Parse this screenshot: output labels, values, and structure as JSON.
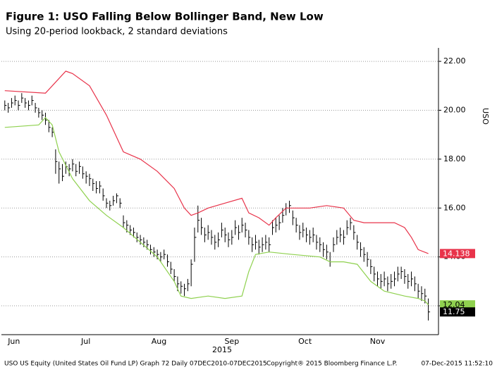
{
  "chart_data": {
    "type": "ohlc",
    "title": "Figure 1: USO Falling Below Bollinger Band, New Low",
    "subtitle": "Using 20-period  lookback, 2 standard deviations",
    "y_label": "USO",
    "x_label": "2015",
    "footer": [
      "USO US Equity (United States Oil Fund LP) Graph 72  Daily 07DEC2010-07DEC2015",
      "Copyright® 2015 Bloomberg Finance L.P.",
      "07-Dec-2015 11:52:10"
    ],
    "grid": true,
    "xlim": [
      -1,
      128
    ],
    "xticks": [
      {
        "value": 2.7,
        "label": "Jun"
      },
      {
        "value": 23.9,
        "label": "Jul"
      },
      {
        "value": 45.5,
        "label": "Aug"
      },
      {
        "value": 67,
        "label": "Sep"
      },
      {
        "value": 88.6,
        "label": "Oct"
      },
      {
        "value": 110,
        "label": "Nov"
      }
    ],
    "ylim": [
      10.82,
      22.55
    ],
    "yticks": [
      {
        "value": 12,
        "label": "12.00"
      },
      {
        "value": 14,
        "label": "14.00"
      },
      {
        "value": 16,
        "label": "16.00"
      },
      {
        "value": 18,
        "label": "18.00"
      },
      {
        "value": 20,
        "label": "20.00"
      },
      {
        "value": 22,
        "label": "22.00"
      }
    ],
    "series": [
      {
        "type": "ohlc",
        "color": "#000000",
        "high": [
          20.4,
          20.3,
          20.5,
          20.6,
          20.4,
          20.7,
          20.5,
          20.4,
          20.6,
          20.3,
          20.1,
          20.0,
          19.9,
          19.6,
          19.3,
          18.4,
          17.9,
          17.8,
          17.9,
          17.8,
          18.0,
          17.8,
          17.9,
          17.7,
          17.5,
          17.4,
          17.2,
          17.1,
          17.1,
          16.8,
          16.4,
          16.3,
          16.5,
          16.6,
          16.4,
          15.7,
          15.5,
          15.3,
          15.2,
          15.0,
          14.9,
          14.8,
          14.7,
          14.5,
          14.4,
          14.3,
          14.2,
          14.3,
          14.1,
          13.8,
          13.5,
          13.2,
          13.0,
          12.9,
          13.1,
          13.9,
          15.2,
          16.1,
          15.6,
          15.2,
          15.3,
          15.1,
          14.9,
          15.0,
          15.4,
          15.2,
          15.0,
          15.1,
          15.5,
          15.3,
          15.6,
          15.4,
          15.1,
          14.8,
          14.9,
          14.7,
          14.8,
          14.9,
          14.8,
          15.5,
          15.6,
          15.7,
          16.0,
          16.2,
          16.3,
          15.9,
          15.6,
          15.3,
          15.4,
          15.2,
          15.1,
          15.2,
          14.9,
          14.8,
          14.6,
          14.5,
          14.2,
          14.8,
          15.1,
          15.2,
          15.1,
          15.5,
          15.6,
          15.3,
          14.9,
          14.6,
          14.4,
          14.2,
          13.9,
          13.6,
          13.4,
          13.3,
          13.4,
          13.2,
          13.3,
          13.4,
          13.6,
          13.6,
          13.5,
          13.3,
          13.4,
          13.2,
          12.9,
          12.8,
          12.7,
          12.3
        ],
        "low": [
          20.0,
          19.9,
          20.1,
          20.2,
          20.0,
          20.3,
          20.1,
          20.0,
          20.2,
          19.9,
          19.7,
          19.6,
          19.4,
          19.1,
          18.9,
          17.4,
          17.0,
          17.1,
          17.4,
          17.3,
          17.5,
          17.3,
          17.4,
          17.2,
          17.0,
          16.9,
          16.7,
          16.6,
          16.6,
          16.3,
          16.0,
          15.9,
          16.1,
          16.2,
          16.0,
          15.2,
          15.0,
          14.9,
          14.8,
          14.6,
          14.5,
          14.4,
          14.3,
          14.1,
          14.0,
          13.9,
          13.8,
          13.9,
          13.6,
          13.3,
          13.0,
          12.6,
          12.5,
          12.4,
          12.6,
          12.8,
          13.8,
          15.0,
          14.9,
          14.6,
          14.7,
          14.5,
          14.3,
          14.4,
          14.8,
          14.6,
          14.4,
          14.5,
          14.9,
          14.7,
          15.0,
          14.8,
          14.5,
          14.2,
          14.3,
          14.1,
          14.2,
          14.3,
          14.2,
          14.9,
          15.0,
          15.1,
          15.4,
          15.7,
          15.8,
          15.3,
          15.0,
          14.7,
          14.8,
          14.6,
          14.5,
          14.6,
          14.3,
          14.2,
          14.0,
          13.9,
          13.6,
          14.2,
          14.5,
          14.6,
          14.5,
          14.9,
          15.1,
          14.7,
          14.3,
          14.0,
          13.8,
          13.6,
          13.3,
          13.0,
          12.8,
          12.7,
          12.8,
          12.6,
          12.7,
          12.8,
          13.0,
          13.1,
          12.9,
          12.7,
          12.8,
          12.6,
          12.3,
          12.2,
          12.1,
          11.4
        ],
        "values": [
          20.2,
          20.1,
          20.3,
          20.4,
          20.2,
          20.5,
          20.3,
          20.2,
          20.4,
          20.1,
          19.9,
          19.8,
          19.6,
          19.3,
          19.1,
          17.9,
          17.6,
          17.3,
          17.7,
          17.6,
          17.8,
          17.5,
          17.7,
          17.4,
          17.3,
          17.2,
          17.0,
          16.8,
          16.9,
          16.5,
          16.2,
          16.1,
          16.3,
          16.5,
          16.2,
          15.4,
          15.3,
          15.1,
          15.0,
          14.8,
          14.7,
          14.6,
          14.5,
          14.3,
          14.2,
          14.1,
          14.0,
          14.1,
          13.8,
          13.5,
          13.2,
          12.9,
          12.8,
          12.7,
          12.9,
          13.7,
          14.8,
          15.5,
          15.2,
          14.9,
          15.0,
          14.8,
          14.6,
          14.7,
          15.1,
          14.9,
          14.7,
          14.8,
          15.2,
          15.0,
          15.3,
          15.1,
          14.8,
          14.5,
          14.6,
          14.4,
          14.5,
          14.6,
          14.5,
          15.2,
          15.3,
          15.4,
          15.7,
          16.0,
          16.1,
          15.6,
          15.3,
          15.0,
          15.1,
          14.9,
          14.8,
          14.9,
          14.6,
          14.5,
          14.3,
          14.2,
          13.8,
          14.5,
          14.8,
          14.9,
          14.8,
          15.2,
          15.4,
          15.0,
          14.6,
          14.3,
          14.1,
          13.9,
          13.6,
          13.3,
          13.1,
          13.0,
          13.1,
          12.9,
          13.0,
          13.1,
          13.3,
          13.4,
          13.2,
          13.0,
          13.1,
          12.9,
          12.6,
          12.5,
          12.4,
          11.75
        ]
      },
      {
        "type": "line",
        "color": "#e8334a",
        "x": [
          0,
          12,
          14,
          18,
          20,
          25,
          30,
          35,
          40,
          45,
          50,
          53,
          55,
          57,
          60,
          65,
          70,
          72,
          75,
          78,
          80,
          83,
          85,
          90,
          95,
          100,
          103,
          106,
          115,
          118,
          120,
          122,
          125
        ],
        "values": [
          20.8,
          20.7,
          21.0,
          21.6,
          21.5,
          21.0,
          19.8,
          18.3,
          18.0,
          17.5,
          16.8,
          16.0,
          15.7,
          15.8,
          16.0,
          16.2,
          16.4,
          15.8,
          15.6,
          15.3,
          15.6,
          16.0,
          16.0,
          16.0,
          16.1,
          16.0,
          15.5,
          15.4,
          15.4,
          15.2,
          14.8,
          14.3,
          14.138
        ]
      },
      {
        "type": "line",
        "color": "#8fd14f",
        "x": [
          0,
          10,
          12,
          14,
          16,
          20,
          25,
          30,
          35,
          40,
          45,
          50,
          52,
          55,
          60,
          65,
          70,
          72,
          74,
          78,
          85,
          93,
          96,
          100,
          104,
          108,
          112,
          118,
          122,
          124,
          125
        ],
        "values": [
          19.3,
          19.4,
          19.7,
          19.4,
          18.3,
          17.2,
          16.3,
          15.7,
          15.2,
          14.6,
          14.0,
          13.0,
          12.4,
          12.3,
          12.4,
          12.3,
          12.4,
          13.4,
          14.1,
          14.2,
          14.1,
          14.0,
          13.8,
          13.8,
          13.7,
          13.0,
          12.6,
          12.4,
          12.3,
          12.2,
          12.04
        ]
      }
    ]
  }
}
